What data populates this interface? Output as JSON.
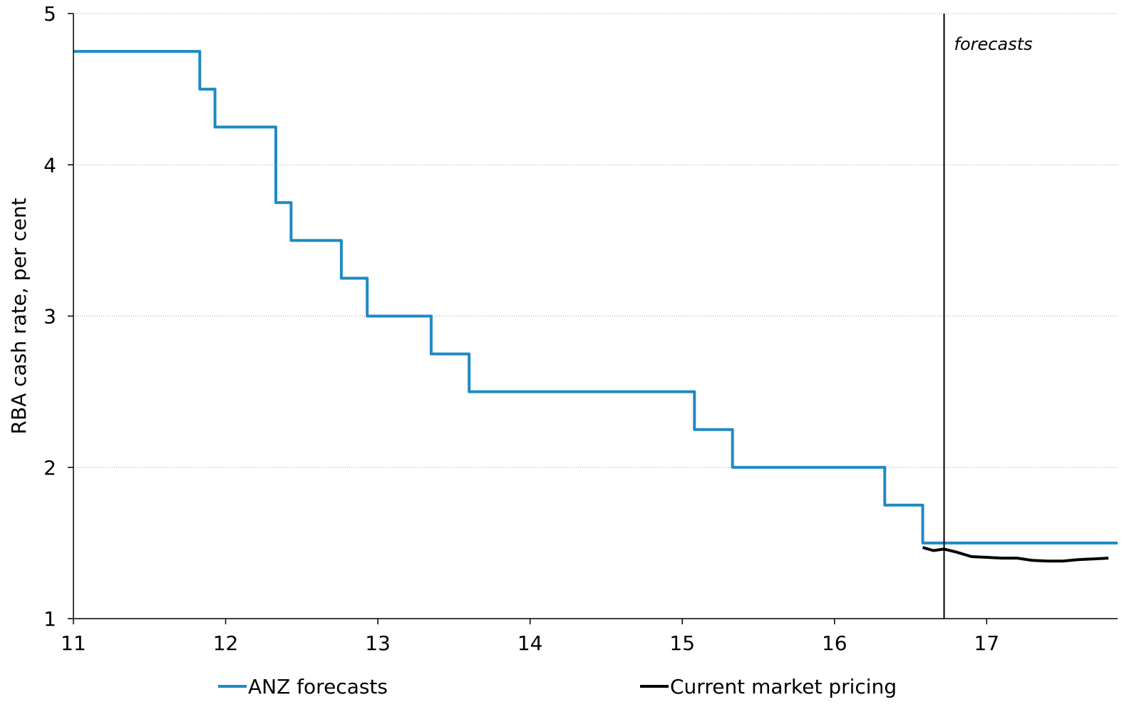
{
  "chart_data": {
    "type": "line",
    "title": "",
    "xlabel": "",
    "ylabel": "RBA cash rate, per cent",
    "xlim": [
      11,
      17.86
    ],
    "ylim": [
      1,
      5
    ],
    "x_ticks": [
      11,
      12,
      13,
      14,
      15,
      16,
      17
    ],
    "x_tick_labels": [
      "11",
      "12",
      "13",
      "14",
      "15",
      "16",
      "17"
    ],
    "y_ticks": [
      1,
      2,
      3,
      4,
      5
    ],
    "y_tick_labels": [
      "1",
      "2",
      "3",
      "4",
      "5"
    ],
    "grid": "horizontal",
    "legend_position": "bottom",
    "annotation": {
      "text": "forecasts",
      "x": 16.72
    },
    "series": [
      {
        "name": "ANZ forecasts",
        "color": "#1f8ac4",
        "step": true,
        "points": [
          [
            11.0,
            4.75
          ],
          [
            11.83,
            4.5
          ],
          [
            11.93,
            4.25
          ],
          [
            12.33,
            3.75
          ],
          [
            12.43,
            3.5
          ],
          [
            12.76,
            3.25
          ],
          [
            12.93,
            3.0
          ],
          [
            13.35,
            2.75
          ],
          [
            13.6,
            2.5
          ],
          [
            15.08,
            2.25
          ],
          [
            15.33,
            2.0
          ],
          [
            16.33,
            1.75
          ],
          [
            16.58,
            1.5
          ],
          [
            17.86,
            1.5
          ]
        ]
      },
      {
        "name": "Current market pricing",
        "color": "#000000",
        "step": false,
        "points": [
          [
            16.58,
            1.47
          ],
          [
            16.65,
            1.45
          ],
          [
            16.72,
            1.46
          ],
          [
            16.8,
            1.44
          ],
          [
            16.9,
            1.41
          ],
          [
            17.0,
            1.405
          ],
          [
            17.1,
            1.4
          ],
          [
            17.2,
            1.4
          ],
          [
            17.3,
            1.385
          ],
          [
            17.4,
            1.38
          ],
          [
            17.5,
            1.38
          ],
          [
            17.6,
            1.39
          ],
          [
            17.7,
            1.395
          ],
          [
            17.8,
            1.4
          ]
        ]
      }
    ]
  }
}
